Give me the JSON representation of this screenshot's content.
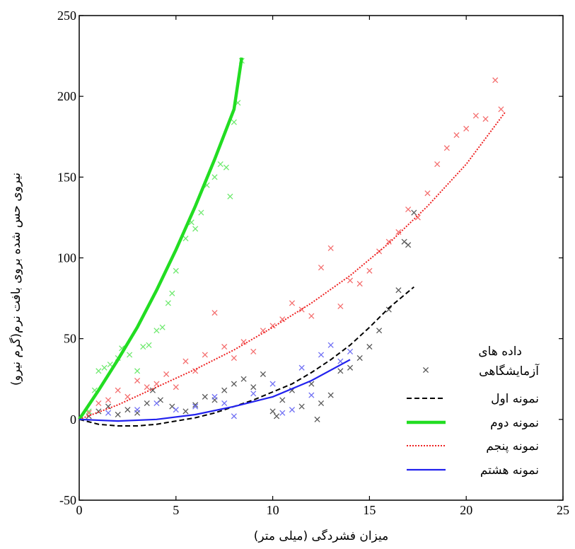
{
  "chart_data": {
    "type": "scatter",
    "xlabel": "میزان فشردگی (میلی متر)",
    "ylabel": "نیروی حس شده بروی بافت نرم(گرم نیرو)",
    "xlim": [
      0,
      25
    ],
    "ylim": [
      -50,
      250
    ],
    "xticks": [
      0,
      5,
      10,
      15,
      20,
      25
    ],
    "yticks": [
      -50,
      0,
      50,
      100,
      150,
      200,
      250
    ],
    "grid": false,
    "legend_position": "bottom-right",
    "legend": {
      "data_label_line1": "داده های",
      "data_label_line2": "آزمایشگاهی",
      "data_marker_color": "#555555"
    },
    "series": [
      {
        "name": "نمونه اول",
        "color": "#000000",
        "line_style": "dashed",
        "fit": {
          "x": [
            0,
            1,
            2,
            3,
            4,
            5,
            6,
            7,
            8,
            9,
            10,
            11,
            12,
            13,
            14,
            15,
            16,
            17.3
          ],
          "y": [
            0,
            -3,
            -4,
            -4,
            -3,
            -1,
            1,
            4,
            8,
            12,
            17,
            22,
            29,
            37,
            46,
            57,
            69,
            82
          ]
        },
        "points": [
          [
            0.5,
            2
          ],
          [
            1,
            5
          ],
          [
            1.5,
            8
          ],
          [
            2,
            3
          ],
          [
            2.5,
            6
          ],
          [
            3,
            4
          ],
          [
            3.5,
            10
          ],
          [
            3.8,
            18
          ],
          [
            4.2,
            12
          ],
          [
            4.8,
            8
          ],
          [
            5.5,
            5
          ],
          [
            6,
            9
          ],
          [
            6.5,
            14
          ],
          [
            7,
            12
          ],
          [
            7.5,
            18
          ],
          [
            8,
            22
          ],
          [
            8.5,
            25
          ],
          [
            9,
            20
          ],
          [
            9.5,
            28
          ],
          [
            10,
            5
          ],
          [
            10.5,
            12
          ],
          [
            11,
            18
          ],
          [
            11.5,
            8
          ],
          [
            12,
            22
          ],
          [
            12.5,
            10
          ],
          [
            13,
            15
          ],
          [
            13.5,
            30
          ],
          [
            14,
            32
          ],
          [
            14.5,
            38
          ],
          [
            15,
            45
          ],
          [
            15.5,
            55
          ],
          [
            16,
            68
          ],
          [
            16.5,
            80
          ],
          [
            17,
            108
          ],
          [
            17.3,
            128
          ],
          [
            16.8,
            110
          ],
          [
            12.3,
            0
          ],
          [
            10.2,
            2
          ]
        ]
      },
      {
        "name": "نمونه دوم",
        "color": "#22dd22",
        "line_style": "solid",
        "fit": {
          "x": [
            0,
            1,
            2,
            3,
            4,
            5,
            6,
            7,
            8,
            8.4
          ],
          "y": [
            0,
            18,
            37,
            57,
            80,
            105,
            132,
            161,
            192,
            224
          ]
        },
        "points": [
          [
            0.5,
            5
          ],
          [
            0.8,
            18
          ],
          [
            1,
            30
          ],
          [
            1.3,
            32
          ],
          [
            1.6,
            34
          ],
          [
            2,
            38
          ],
          [
            2.2,
            44
          ],
          [
            2.6,
            40
          ],
          [
            3,
            30
          ],
          [
            3.3,
            45
          ],
          [
            3.6,
            46
          ],
          [
            4,
            55
          ],
          [
            4.3,
            57
          ],
          [
            4.6,
            72
          ],
          [
            4.8,
            78
          ],
          [
            5,
            92
          ],
          [
            5.5,
            112
          ],
          [
            5.8,
            122
          ],
          [
            6,
            118
          ],
          [
            6.3,
            128
          ],
          [
            6.6,
            145
          ],
          [
            7,
            150
          ],
          [
            7.3,
            158
          ],
          [
            7.6,
            156
          ],
          [
            7.8,
            138
          ],
          [
            8,
            184
          ],
          [
            8.2,
            196
          ],
          [
            8.4,
            222
          ]
        ]
      },
      {
        "name": "نمونه پنجم",
        "color": "#ee2222",
        "line_style": "dotted",
        "fit": {
          "x": [
            0,
            2,
            4,
            6,
            8,
            10,
            12,
            14,
            16,
            18,
            20,
            22
          ],
          "y": [
            0,
            9,
            20,
            31,
            43,
            57,
            72,
            89,
            109,
            132,
            158,
            190
          ]
        },
        "points": [
          [
            0.5,
            4
          ],
          [
            1,
            10
          ],
          [
            1.5,
            12
          ],
          [
            2,
            18
          ],
          [
            2.5,
            14
          ],
          [
            3,
            24
          ],
          [
            3.5,
            20
          ],
          [
            4,
            22
          ],
          [
            4.5,
            28
          ],
          [
            5,
            20
          ],
          [
            5.5,
            36
          ],
          [
            6,
            30
          ],
          [
            6.5,
            40
          ],
          [
            7,
            66
          ],
          [
            7.5,
            45
          ],
          [
            8,
            38
          ],
          [
            8.5,
            48
          ],
          [
            9,
            42
          ],
          [
            9.5,
            55
          ],
          [
            10,
            58
          ],
          [
            10.5,
            62
          ],
          [
            11,
            72
          ],
          [
            11.5,
            68
          ],
          [
            12,
            64
          ],
          [
            12.5,
            94
          ],
          [
            13,
            106
          ],
          [
            13.5,
            70
          ],
          [
            14,
            86
          ],
          [
            14.5,
            84
          ],
          [
            15,
            92
          ],
          [
            15.5,
            104
          ],
          [
            16,
            110
          ],
          [
            16.5,
            116
          ],
          [
            17,
            130
          ],
          [
            17.5,
            125
          ],
          [
            18,
            140
          ],
          [
            18.5,
            158
          ],
          [
            19,
            168
          ],
          [
            19.5,
            176
          ],
          [
            20,
            180
          ],
          [
            20.5,
            188
          ],
          [
            21,
            186
          ],
          [
            21.5,
            210
          ],
          [
            21.8,
            192
          ]
        ]
      },
      {
        "name": "نمونه هشتم",
        "color": "#2222ee",
        "line_style": "solid",
        "fit": {
          "x": [
            0,
            2,
            4,
            6,
            8,
            10,
            12,
            14
          ],
          "y": [
            0,
            -1,
            0,
            3,
            8,
            14,
            24,
            37
          ]
        },
        "points": [
          [
            1.5,
            4
          ],
          [
            3,
            6
          ],
          [
            4,
            10
          ],
          [
            5,
            6
          ],
          [
            6,
            8
          ],
          [
            7,
            14
          ],
          [
            7.5,
            10
          ],
          [
            8,
            2
          ],
          [
            9,
            16
          ],
          [
            10,
            22
          ],
          [
            10.5,
            4
          ],
          [
            11,
            6
          ],
          [
            11.5,
            32
          ],
          [
            12,
            15
          ],
          [
            12.5,
            40
          ],
          [
            13,
            46
          ],
          [
            13.5,
            36
          ],
          [
            14,
            42
          ]
        ]
      }
    ]
  }
}
